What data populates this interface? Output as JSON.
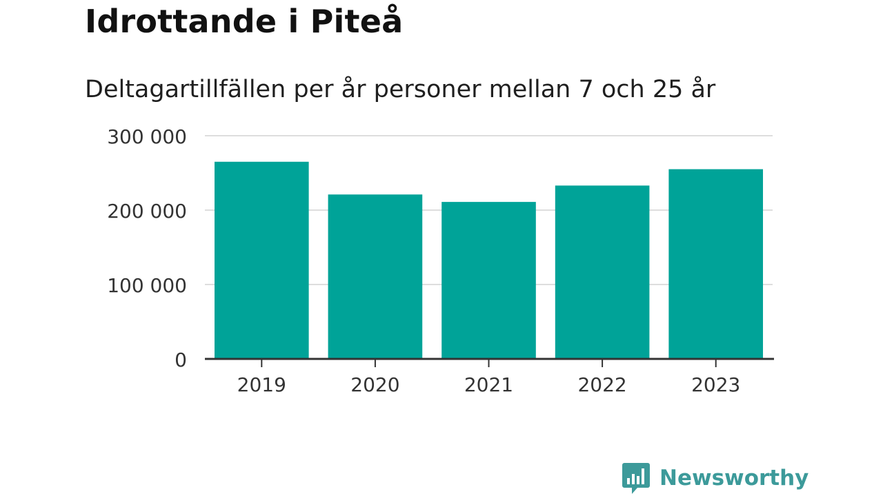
{
  "title": "Idrottande i Piteå",
  "subtitle": "Deltagartillfällen per år personer mellan 7 och 25 år",
  "brand": {
    "name": "Newsworthy",
    "color": "#3c9a9a",
    "icon": "bar-chart-speech-bubble-icon"
  },
  "colors": {
    "bar": "#00a398",
    "grid": "#dddddd",
    "axis": "#333333",
    "tick_text": "#333333"
  },
  "chart_data": {
    "type": "bar",
    "categories": [
      "2019",
      "2020",
      "2021",
      "2022",
      "2023"
    ],
    "values": [
      265000,
      221000,
      211000,
      233000,
      255000
    ],
    "ylim": [
      0,
      300000
    ],
    "yticks": [
      0,
      100000,
      200000,
      300000
    ],
    "ytick_labels": [
      "0",
      "100 000",
      "200 000",
      "300 000"
    ],
    "grid": true,
    "legend": "none",
    "xlabel": "",
    "ylabel": ""
  }
}
